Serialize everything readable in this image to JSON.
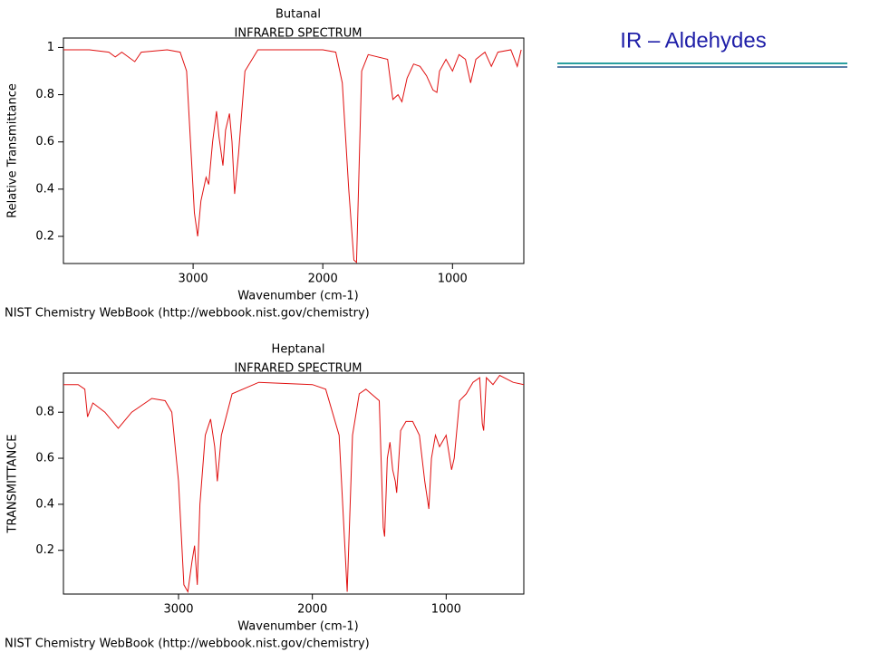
{
  "slide_title": "IR – Aldehydes",
  "chart_data": [
    {
      "type": "line",
      "title": "Butanal",
      "subtitle": "INFRARED SPECTRUM",
      "x_label": "Wavenumber (cm-1)",
      "y_label": "Relative Transmittance",
      "source": "NIST Chemistry WebBook (http://webbook.nist.gov/chemistry)",
      "xlim": [
        4000,
        450
      ],
      "ylim": [
        0.085,
        1.04
      ],
      "xticks": [
        3000,
        2000,
        1000
      ],
      "yticks": [
        0.2,
        0.4,
        0.6,
        0.8,
        1
      ],
      "x": [
        4000,
        3800,
        3650,
        3600,
        3550,
        3450,
        3400,
        3200,
        3100,
        3050,
        3020,
        2990,
        2965,
        2940,
        2900,
        2880,
        2850,
        2820,
        2800,
        2770,
        2750,
        2720,
        2700,
        2680,
        2650,
        2600,
        2500,
        2000,
        1900,
        1850,
        1800,
        1760,
        1740,
        1720,
        1700,
        1650,
        1500,
        1460,
        1420,
        1390,
        1350,
        1300,
        1250,
        1200,
        1150,
        1120,
        1100,
        1050,
        1000,
        950,
        900,
        860,
        820,
        750,
        700,
        650,
        550,
        500,
        470
      ],
      "series": [
        {
          "color": "#e01010",
          "values": [
            0.99,
            0.99,
            0.98,
            0.96,
            0.98,
            0.94,
            0.98,
            0.99,
            0.98,
            0.9,
            0.6,
            0.3,
            0.2,
            0.35,
            0.45,
            0.42,
            0.6,
            0.73,
            0.62,
            0.5,
            0.65,
            0.72,
            0.6,
            0.38,
            0.55,
            0.9,
            0.99,
            0.99,
            0.98,
            0.85,
            0.4,
            0.1,
            0.09,
            0.5,
            0.9,
            0.97,
            0.95,
            0.78,
            0.8,
            0.77,
            0.87,
            0.93,
            0.92,
            0.88,
            0.82,
            0.81,
            0.9,
            0.95,
            0.9,
            0.97,
            0.95,
            0.85,
            0.95,
            0.98,
            0.92,
            0.98,
            0.99,
            0.92,
            0.99
          ]
        }
      ]
    },
    {
      "type": "line",
      "title": "Heptanal",
      "subtitle": "INFRARED SPECTRUM",
      "x_label": "Wavenumber (cm-1)",
      "y_label": "TRANSMITTANCE",
      "source": "NIST Chemistry WebBook (http://webbook.nist.gov/chemistry)",
      "xlim": [
        3860,
        420
      ],
      "ylim": [
        0.01,
        0.97
      ],
      "xticks": [
        3000,
        2000,
        1000
      ],
      "yticks": [
        0.2,
        0.4,
        0.6,
        0.8
      ],
      "x": [
        3860,
        3750,
        3700,
        3680,
        3640,
        3550,
        3450,
        3350,
        3200,
        3100,
        3050,
        3000,
        2960,
        2930,
        2900,
        2880,
        2860,
        2840,
        2800,
        2760,
        2730,
        2710,
        2680,
        2600,
        2400,
        2000,
        1900,
        1800,
        1740,
        1700,
        1650,
        1600,
        1500,
        1470,
        1460,
        1440,
        1420,
        1400,
        1380,
        1370,
        1340,
        1300,
        1250,
        1200,
        1160,
        1130,
        1110,
        1080,
        1050,
        1000,
        960,
        940,
        900,
        850,
        800,
        750,
        730,
        720,
        700,
        650,
        600,
        500,
        420
      ],
      "series": [
        {
          "color": "#e01010",
          "values": [
            0.92,
            0.92,
            0.9,
            0.78,
            0.84,
            0.8,
            0.73,
            0.8,
            0.86,
            0.85,
            0.8,
            0.5,
            0.05,
            0.02,
            0.15,
            0.22,
            0.05,
            0.4,
            0.7,
            0.77,
            0.65,
            0.5,
            0.7,
            0.88,
            0.93,
            0.92,
            0.9,
            0.7,
            0.02,
            0.7,
            0.88,
            0.9,
            0.85,
            0.3,
            0.26,
            0.6,
            0.67,
            0.55,
            0.5,
            0.45,
            0.72,
            0.76,
            0.76,
            0.7,
            0.5,
            0.38,
            0.6,
            0.7,
            0.65,
            0.7,
            0.55,
            0.6,
            0.85,
            0.88,
            0.93,
            0.95,
            0.75,
            0.72,
            0.95,
            0.92,
            0.96,
            0.93,
            0.92
          ]
        }
      ]
    }
  ]
}
